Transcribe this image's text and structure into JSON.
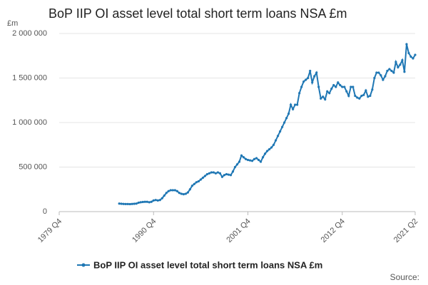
{
  "chart_data": {
    "type": "line",
    "title": "BoP IIP OI asset level total short term loans NSA £m",
    "y_label": "£m",
    "source": "Source:",
    "categories": [
      "1979 Q4",
      null,
      null,
      null,
      null,
      null,
      null,
      null,
      null,
      null,
      null,
      null,
      null,
      null,
      null,
      null,
      null,
      null,
      null,
      null,
      null,
      null,
      null,
      null,
      null,
      null,
      null,
      null,
      null,
      null,
      null,
      null,
      null,
      null,
      null,
      null,
      null,
      null,
      null,
      null,
      null,
      null,
      null,
      null,
      "1990 Q4",
      null,
      null,
      null,
      null,
      null,
      null,
      null,
      null,
      null,
      null,
      null,
      null,
      null,
      null,
      null,
      null,
      null,
      null,
      null,
      null,
      null,
      null,
      null,
      null,
      null,
      null,
      null,
      null,
      null,
      null,
      null,
      null,
      null,
      null,
      null,
      null,
      null,
      null,
      null,
      null,
      null,
      null,
      null,
      "2001 Q4",
      null,
      null,
      null,
      null,
      null,
      null,
      null,
      null,
      null,
      null,
      null,
      null,
      null,
      null,
      null,
      null,
      null,
      null,
      null,
      null,
      null,
      null,
      null,
      null,
      null,
      null,
      null,
      null,
      null,
      null,
      null,
      null,
      null,
      null,
      null,
      null,
      null,
      null,
      null,
      null,
      null,
      null,
      null,
      "2012 Q4",
      null,
      null,
      null,
      null,
      null,
      null,
      null,
      null,
      null,
      null,
      null,
      null,
      null,
      null,
      null,
      null,
      null,
      null,
      null,
      null,
      null,
      null,
      null,
      null,
      null,
      null,
      null,
      null,
      null,
      null,
      null,
      null,
      null,
      "2021 Q2"
    ],
    "series": [
      {
        "name": "BoP IIP OI asset level total short term loans NSA £m",
        "color": "#1f77b4",
        "values": [
          null,
          null,
          null,
          null,
          null,
          null,
          null,
          null,
          null,
          null,
          null,
          null,
          null,
          null,
          null,
          null,
          null,
          null,
          null,
          null,
          null,
          null,
          null,
          null,
          null,
          null,
          null,
          null,
          90000,
          88000,
          86000,
          85000,
          85000,
          84000,
          86000,
          88000,
          90000,
          100000,
          105000,
          108000,
          110000,
          110000,
          105000,
          110000,
          125000,
          130000,
          125000,
          130000,
          150000,
          180000,
          210000,
          230000,
          240000,
          240000,
          240000,
          230000,
          210000,
          200000,
          195000,
          200000,
          215000,
          250000,
          290000,
          310000,
          330000,
          340000,
          360000,
          380000,
          400000,
          420000,
          430000,
          440000,
          440000,
          430000,
          440000,
          430000,
          390000,
          410000,
          420000,
          415000,
          410000,
          450000,
          500000,
          530000,
          560000,
          630000,
          610000,
          590000,
          580000,
          575000,
          570000,
          590000,
          600000,
          580000,
          560000,
          610000,
          650000,
          680000,
          700000,
          720000,
          750000,
          800000,
          850000,
          900000,
          950000,
          1000000,
          1050000,
          1100000,
          1200000,
          1150000,
          1200000,
          1200000,
          1330000,
          1400000,
          1460000,
          1480000,
          1500000,
          1580000,
          1450000,
          1520000,
          1560000,
          1400000,
          1270000,
          1290000,
          1260000,
          1350000,
          1330000,
          1380000,
          1420000,
          1400000,
          1450000,
          1420000,
          1400000,
          1400000,
          1350000,
          1300000,
          1400000,
          1400000,
          1300000,
          1280000,
          1270000,
          1300000,
          1310000,
          1360000,
          1290000,
          1300000,
          1370000,
          1500000,
          1560000,
          1560000,
          1530000,
          1480000,
          1520000,
          1580000,
          1600000,
          1580000,
          1560000,
          1680000,
          1620000,
          1650000,
          1700000,
          1570000,
          1880000,
          1780000,
          1740000,
          1720000,
          1760000
        ]
      }
    ],
    "ylim": [
      0,
      2000000
    ],
    "yticks": [
      0,
      {
        "value": 500000,
        "label": "500 000"
      },
      {
        "value": 1000000,
        "label": "1 000 000"
      },
      {
        "value": 1500000,
        "label": "1 500 000"
      },
      {
        "value": 2000000,
        "label": "2 000 000"
      }
    ],
    "grid": true
  }
}
